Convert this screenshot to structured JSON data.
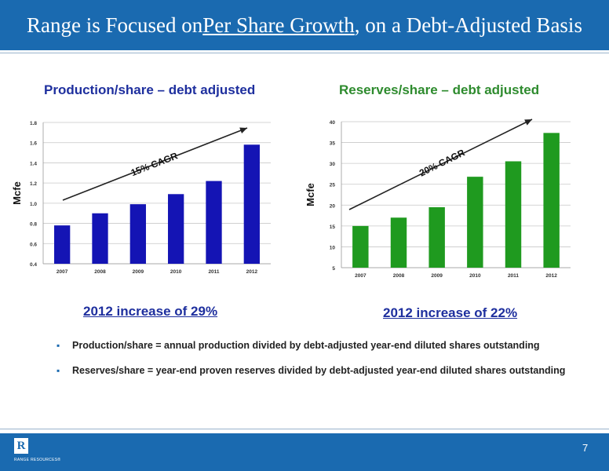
{
  "header": {
    "title_part1": "Range is Focused on ",
    "title_underlined": "Per Share Growth",
    "title_part2": ", on a Debt-Adjusted Basis",
    "background_color": "#1a6ab0"
  },
  "chart_data": [
    {
      "type": "bar",
      "title": "Production/share – debt adjusted",
      "title_color": "#1e2f9e",
      "ylabel": "Mcfe",
      "categories": [
        "2007",
        "2008",
        "2009",
        "2010",
        "2011",
        "2012"
      ],
      "values": [
        0.78,
        0.9,
        0.99,
        1.09,
        1.22,
        1.58
      ],
      "ylim": [
        0.4,
        1.8
      ],
      "yticks": [
        "0.4",
        "0.6",
        "0.8",
        "1.0",
        "1.2",
        "1.4",
        "1.6",
        "1.8"
      ],
      "bar_color": "#1414b4",
      "grid": true,
      "annotation": "15% CAGR",
      "increase_text": "2012 increase of 29%"
    },
    {
      "type": "bar",
      "title": "Reserves/share – debt adjusted",
      "title_color": "#2e8b2e",
      "ylabel": "Mcfe",
      "categories": [
        "2007",
        "2008",
        "2009",
        "2010",
        "2011",
        "2012"
      ],
      "values": [
        15,
        17,
        19.5,
        26.8,
        30.5,
        37.3
      ],
      "ylim": [
        5,
        40
      ],
      "yticks": [
        "5",
        "10",
        "15",
        "20",
        "25",
        "30",
        "35",
        "40"
      ],
      "bar_color": "#1f9a1f",
      "grid": true,
      "annotation": "20% CAGR",
      "increase_text": "2012 increase of 22%"
    }
  ],
  "bullets": [
    "Production/share = annual production divided by debt-adjusted year-end diluted shares outstanding",
    "Reserves/share = year-end proven reserves divided by debt-adjusted year-end diluted shares outstanding"
  ],
  "bullet_glyph": "▪",
  "footer": {
    "logo_letter": "R",
    "logo_text": "RANGE RESOURCES®",
    "page_number": "7"
  }
}
